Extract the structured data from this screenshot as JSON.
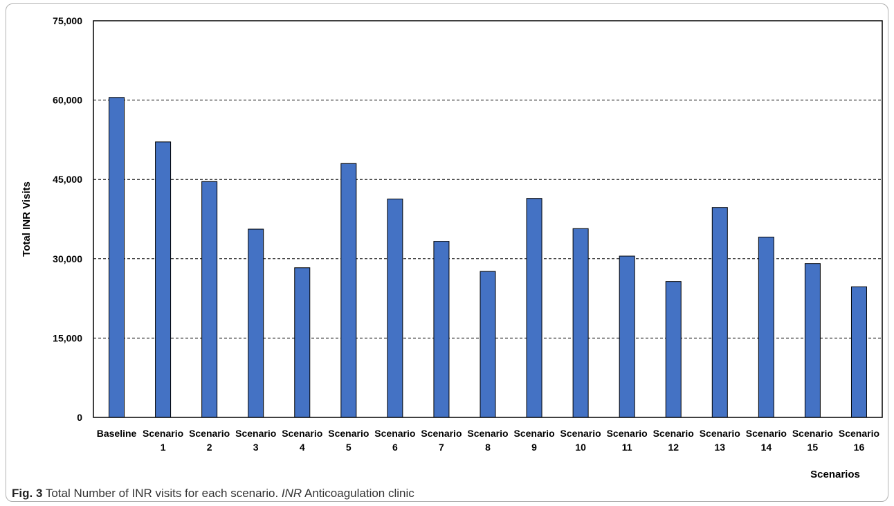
{
  "chart_data": {
    "type": "bar",
    "categories": [
      [
        "Baseline"
      ],
      [
        "Scenario",
        "1"
      ],
      [
        "Scenario",
        "2"
      ],
      [
        "Scenario",
        "3"
      ],
      [
        "Scenario",
        "4"
      ],
      [
        "Scenario",
        "5"
      ],
      [
        "Scenario",
        "6"
      ],
      [
        "Scenario",
        "7"
      ],
      [
        "Scenario",
        "8"
      ],
      [
        "Scenario",
        "9"
      ],
      [
        "Scenario",
        "10"
      ],
      [
        "Scenario",
        "11"
      ],
      [
        "Scenario",
        "12"
      ],
      [
        "Scenario",
        "13"
      ],
      [
        "Scenario",
        "14"
      ],
      [
        "Scenario",
        "15"
      ],
      [
        "Scenario",
        "16"
      ]
    ],
    "values": [
      60500,
      52100,
      44600,
      35600,
      28300,
      48000,
      41300,
      33300,
      27600,
      41400,
      35700,
      30500,
      25700,
      39700,
      34100,
      29100,
      24700
    ],
    "yticks": [
      "0",
      "15,000",
      "30,000",
      "45,000",
      "60,000",
      "75,000"
    ],
    "ytick_values": [
      0,
      15000,
      30000,
      45000,
      60000,
      75000
    ],
    "ylim": [
      0,
      75000
    ],
    "ylabel": "Total INR Visits",
    "xlabel": "Scenarios",
    "grid": "horizontal dashed",
    "bar_color": "#4472c4",
    "bar_edge_color": "#000000"
  },
  "caption": {
    "fig_label": "Fig. 3",
    "text_before": "Total Number of INR visits for each scenario.",
    "abbr": "INR",
    "text_after": "Anticoagulation clinic"
  }
}
